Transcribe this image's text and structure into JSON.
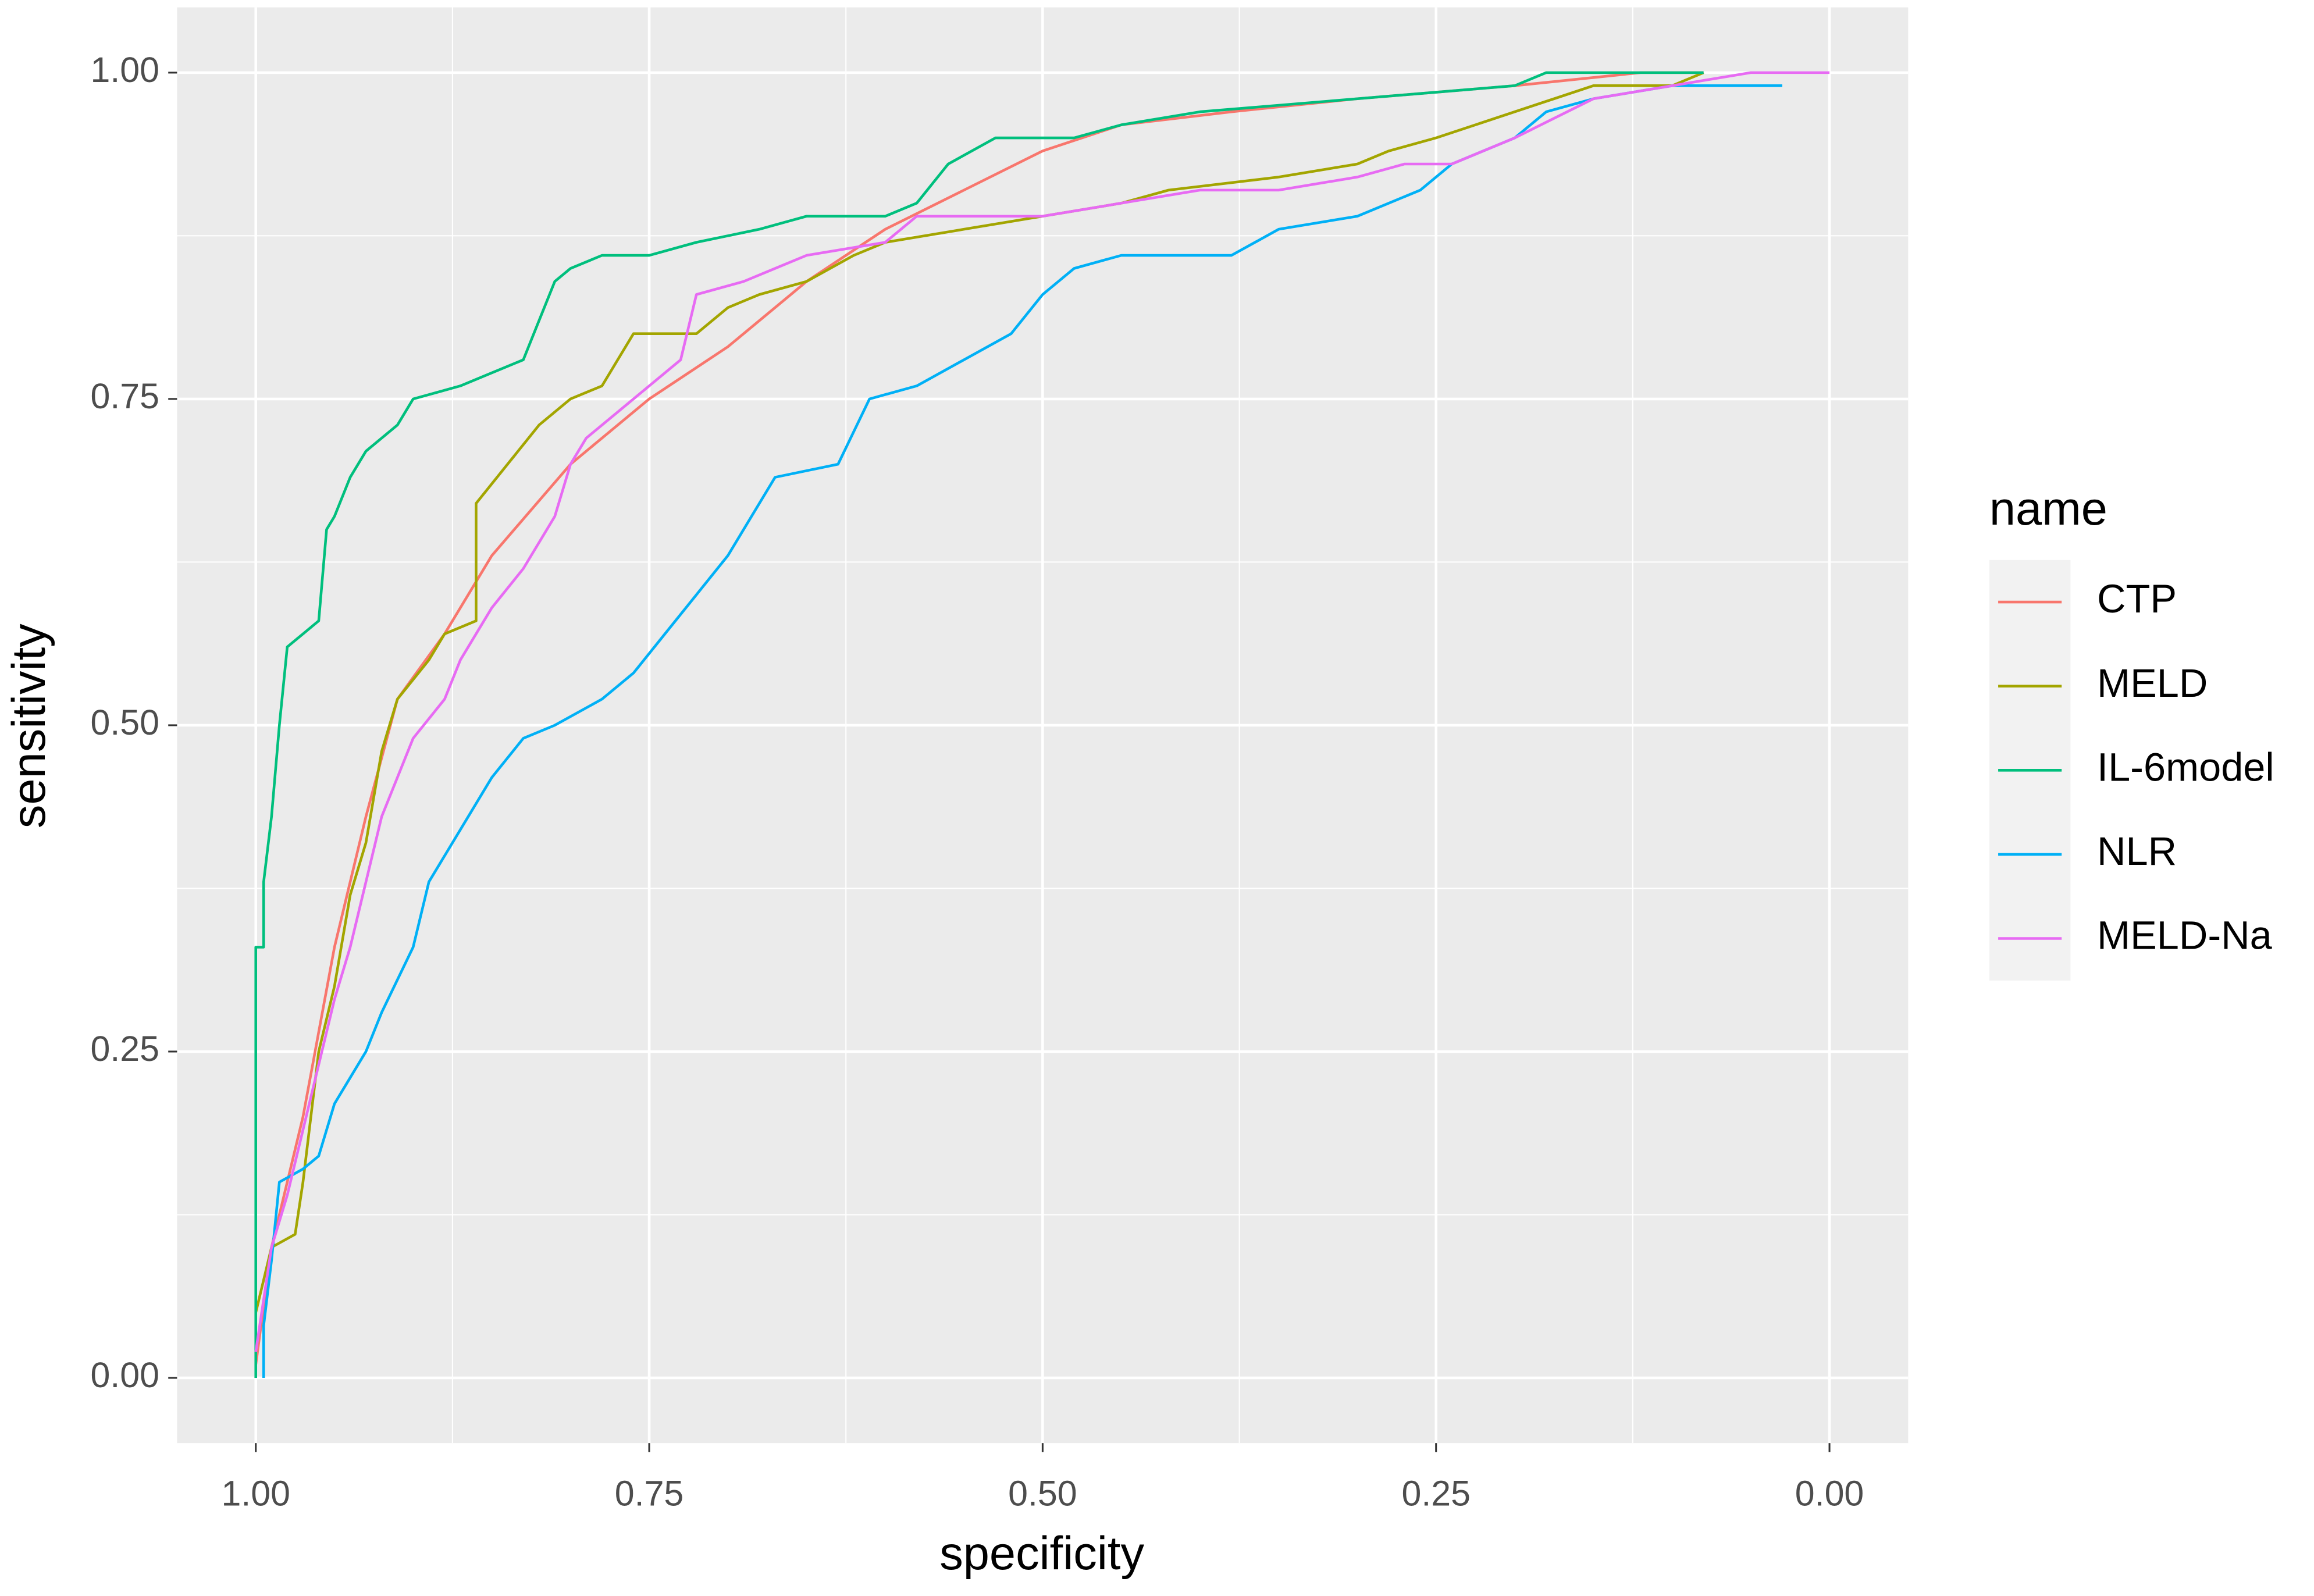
{
  "chart_data": {
    "type": "line",
    "x_label": "specificity",
    "y_label": "sensitivity",
    "legend_title": "name",
    "legend": "right",
    "grid": true,
    "xlim": [
      1.05,
      -0.05
    ],
    "ylim": [
      -0.05,
      1.05
    ],
    "xticks": [
      {
        "value": 1,
        "label": "1.00"
      },
      {
        "value": 0.75,
        "label": "0.75"
      },
      {
        "value": 0.5,
        "label": "0.50"
      },
      {
        "value": 0.25,
        "label": "0.25"
      },
      {
        "value": 0,
        "label": "0.00"
      }
    ],
    "yticks": [
      {
        "value": 0,
        "label": "0.00"
      },
      {
        "value": 0.25,
        "label": "0.25"
      },
      {
        "value": 0.5,
        "label": "0.50"
      },
      {
        "value": 0.75,
        "label": "0.75"
      },
      {
        "value": 1,
        "label": "1.00"
      }
    ],
    "series": [
      {
        "name": "CTP",
        "color": "#F8766D",
        "x": [
          1,
          0.99,
          0.97,
          0.95,
          0.93,
          0.91,
          0.88,
          0.85,
          0.8,
          0.75,
          0.7,
          0.65,
          0.6,
          0.55,
          0.5,
          0.45,
          0.38,
          0.3,
          0.2,
          0.12,
          0.08
        ],
        "values": [
          0.01,
          0.1,
          0.2,
          0.33,
          0.43,
          0.52,
          0.57,
          0.63,
          0.7,
          0.75,
          0.79,
          0.84,
          0.88,
          0.91,
          0.94,
          0.96,
          0.97,
          0.98,
          0.99,
          1,
          1
        ]
      },
      {
        "name": "MELD",
        "color": "#A3A500",
        "x": [
          1,
          0.99,
          0.975,
          0.97,
          0.96,
          0.95,
          0.94,
          0.93,
          0.92,
          0.91,
          0.89,
          0.88,
          0.86,
          0.86,
          0.84,
          0.82,
          0.8,
          0.78,
          0.77,
          0.76,
          0.72,
          0.7,
          0.68,
          0.65,
          0.62,
          0.6,
          0.55,
          0.5,
          0.45,
          0.42,
          0.35,
          0.3,
          0.28,
          0.25,
          0.2,
          0.15,
          0.1,
          0.08
        ],
        "values": [
          0.05,
          0.1,
          0.11,
          0.15,
          0.25,
          0.3,
          0.37,
          0.41,
          0.48,
          0.52,
          0.55,
          0.57,
          0.58,
          0.67,
          0.7,
          0.73,
          0.75,
          0.76,
          0.78,
          0.8,
          0.8,
          0.82,
          0.83,
          0.84,
          0.86,
          0.87,
          0.88,
          0.89,
          0.9,
          0.91,
          0.92,
          0.93,
          0.94,
          0.95,
          0.97,
          0.99,
          0.99,
          1
        ]
      },
      {
        "name": "IL-6model",
        "color": "#00BF7D",
        "x": [
          1,
          1,
          0.995,
          0.995,
          0.99,
          0.985,
          0.98,
          0.97,
          0.96,
          0.955,
          0.95,
          0.94,
          0.93,
          0.91,
          0.9,
          0.87,
          0.85,
          0.83,
          0.82,
          0.81,
          0.8,
          0.78,
          0.75,
          0.72,
          0.68,
          0.65,
          0.6,
          0.58,
          0.56,
          0.53,
          0.48,
          0.45,
          0.4,
          0.3,
          0.2,
          0.18,
          0.08
        ],
        "values": [
          0,
          0.33,
          0.33,
          0.38,
          0.43,
          0.5,
          0.56,
          0.57,
          0.58,
          0.65,
          0.66,
          0.69,
          0.71,
          0.73,
          0.75,
          0.76,
          0.77,
          0.78,
          0.81,
          0.84,
          0.85,
          0.86,
          0.86,
          0.87,
          0.88,
          0.89,
          0.89,
          0.9,
          0.93,
          0.95,
          0.95,
          0.96,
          0.97,
          0.98,
          0.99,
          1,
          1
        ]
      },
      {
        "name": "NLR",
        "color": "#00B0F6",
        "x": [
          0.995,
          0.995,
          0.99,
          0.985,
          0.97,
          0.96,
          0.95,
          0.93,
          0.92,
          0.9,
          0.89,
          0.87,
          0.85,
          0.83,
          0.81,
          0.78,
          0.76,
          0.74,
          0.72,
          0.7,
          0.68,
          0.67,
          0.63,
          0.61,
          0.58,
          0.55,
          0.52,
          0.5,
          0.48,
          0.45,
          0.38,
          0.35,
          0.3,
          0.26,
          0.24,
          0.2,
          0.18,
          0.15,
          0.1,
          0.03
        ],
        "values": [
          0,
          0.04,
          0.09,
          0.15,
          0.16,
          0.17,
          0.21,
          0.25,
          0.28,
          0.33,
          0.38,
          0.42,
          0.46,
          0.49,
          0.5,
          0.52,
          0.54,
          0.57,
          0.6,
          0.63,
          0.67,
          0.69,
          0.7,
          0.75,
          0.76,
          0.78,
          0.8,
          0.83,
          0.85,
          0.86,
          0.86,
          0.88,
          0.89,
          0.91,
          0.93,
          0.95,
          0.97,
          0.98,
          0.99,
          0.99
        ]
      },
      {
        "name": "MELD-Na",
        "color": "#E76BF3",
        "x": [
          1,
          0.99,
          0.98,
          0.97,
          0.96,
          0.95,
          0.94,
          0.93,
          0.92,
          0.91,
          0.9,
          0.88,
          0.87,
          0.85,
          0.83,
          0.81,
          0.8,
          0.79,
          0.77,
          0.75,
          0.73,
          0.72,
          0.69,
          0.67,
          0.65,
          0.6,
          0.58,
          0.5,
          0.45,
          0.4,
          0.35,
          0.3,
          0.27,
          0.24,
          0.2,
          0.15,
          0.1,
          0.05,
          0
        ],
        "values": [
          0.02,
          0.1,
          0.14,
          0.19,
          0.24,
          0.29,
          0.33,
          0.38,
          0.43,
          0.46,
          0.49,
          0.52,
          0.55,
          0.59,
          0.62,
          0.66,
          0.7,
          0.72,
          0.74,
          0.76,
          0.78,
          0.83,
          0.84,
          0.85,
          0.86,
          0.87,
          0.89,
          0.89,
          0.9,
          0.91,
          0.91,
          0.92,
          0.93,
          0.93,
          0.95,
          0.98,
          0.99,
          1,
          1
        ]
      }
    ]
  }
}
